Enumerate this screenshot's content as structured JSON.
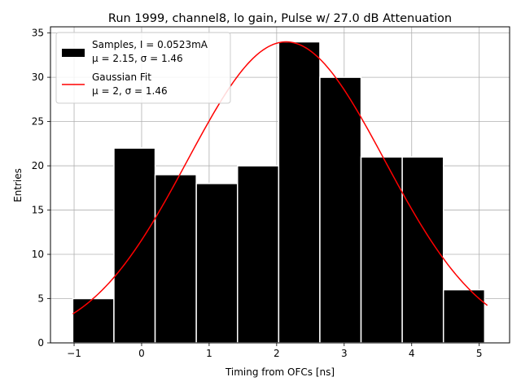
{
  "chart_data": {
    "type": "bar",
    "title": "Run 1999, channel8, lo gain, Pulse w/ 27.0 dB Attenuation",
    "xlabel": "Timing from OFCs [ns]",
    "ylabel": "Entries",
    "xlim": [
      -1.35,
      5.45
    ],
    "ylim": [
      0,
      35.7
    ],
    "xticks": [
      -1,
      0,
      1,
      2,
      3,
      4,
      5
    ],
    "yticks": [
      0,
      5,
      10,
      15,
      20,
      25,
      30,
      35
    ],
    "grid": true,
    "legend_position": "top-left",
    "histogram": {
      "name": "Samples, I = 0.0523mA",
      "stats": "μ = 2.15, σ = 1.46",
      "color": "#000000",
      "edge_color": "#ffffff",
      "bin_edges": [
        -1.02,
        -0.41,
        0.2,
        0.81,
        1.42,
        2.03,
        2.64,
        3.25,
        3.86,
        4.47,
        5.08
      ],
      "counts": [
        5,
        22,
        19,
        18,
        20,
        34,
        30,
        21,
        21,
        6
      ]
    },
    "fit": {
      "name": "Gaussian Fit",
      "stats": "μ = 2, σ = 1.46",
      "color": "#ff0000",
      "amplitude": 34.0,
      "mean": 2.14,
      "sigma": 1.46,
      "x_range": [
        -1.02,
        5.12
      ]
    }
  }
}
